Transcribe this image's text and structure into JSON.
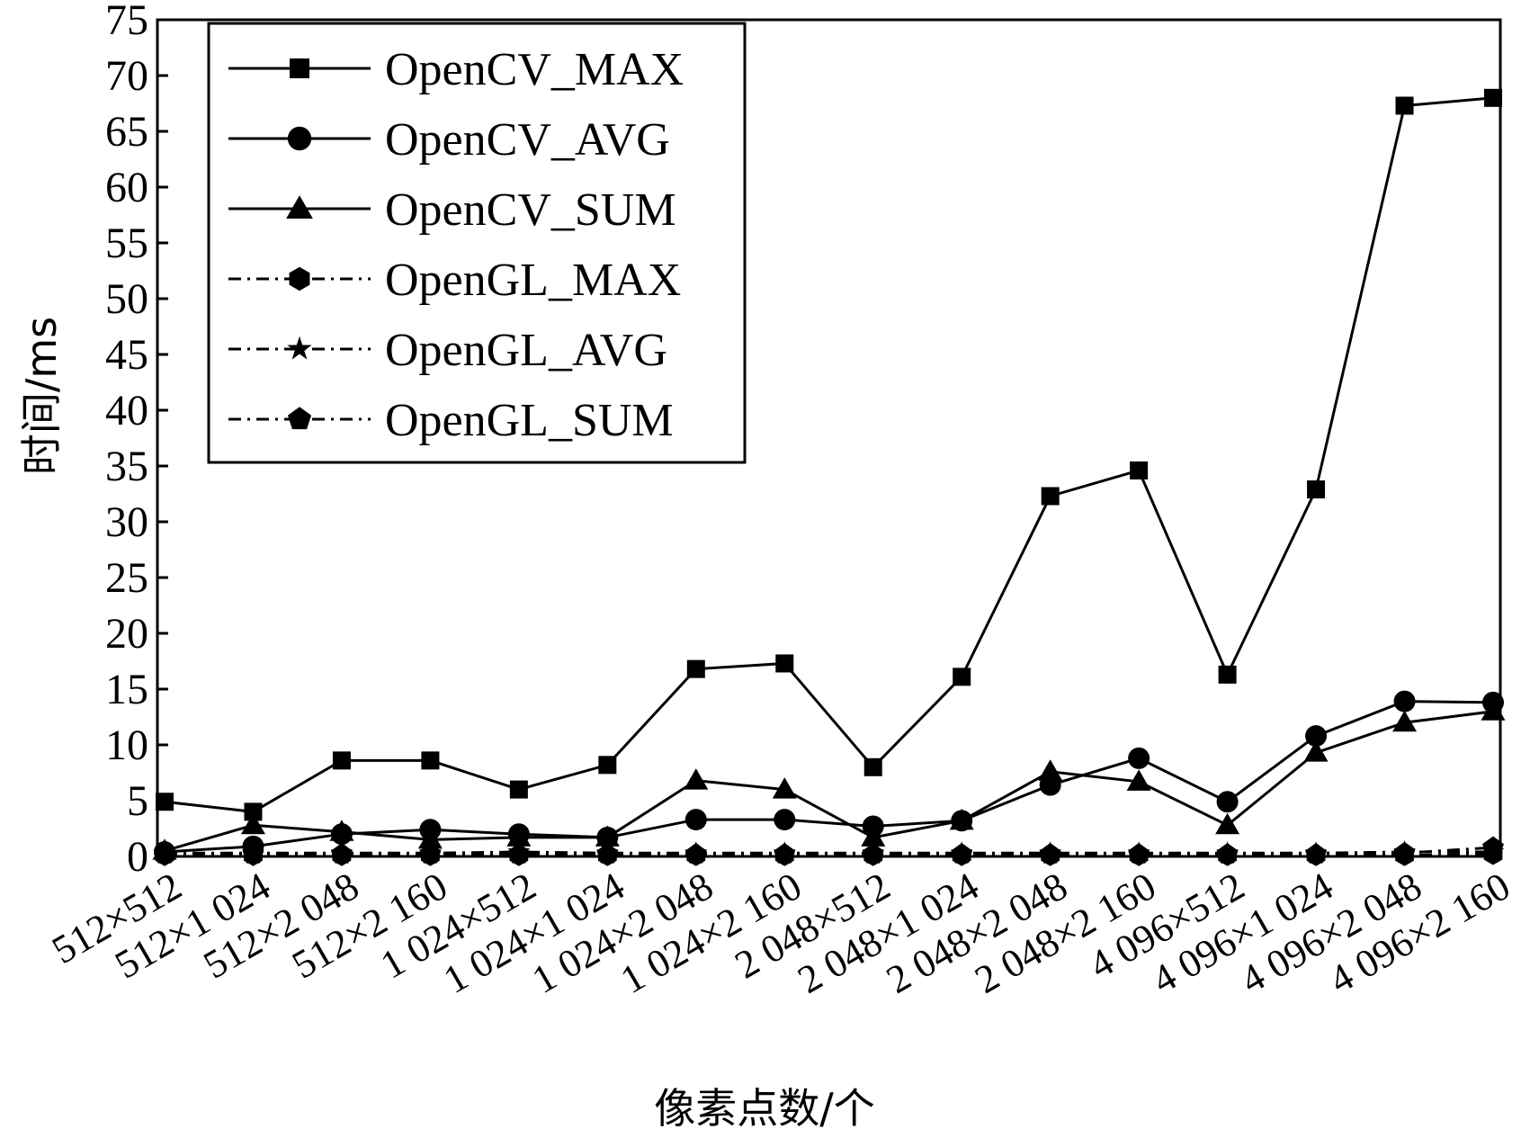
{
  "chart_data": {
    "type": "line",
    "xlabel": "像素点数/个",
    "ylabel": "时间/ms",
    "ylim": [
      0,
      75
    ],
    "yticks": [
      0,
      5,
      10,
      15,
      20,
      25,
      30,
      35,
      40,
      45,
      50,
      55,
      60,
      65,
      70,
      75
    ],
    "grid": false,
    "legend_position": "top-left",
    "categories": [
      "512×512",
      "512×1 024",
      "512×2 048",
      "512×2 160",
      "1 024×512",
      "1 024×1 024",
      "1 024×2 048",
      "1 024×2 160",
      "2 048×512",
      "2 048×1 024",
      "2 048×2 048",
      "2 048×2 160",
      "4 096×512",
      "4 096×1 024",
      "4 096×2 048",
      "4 096×2 160"
    ],
    "series": [
      {
        "name": "OpenCV_MAX",
        "marker": "square",
        "dash": "solid",
        "values": [
          4.9,
          4.0,
          8.6,
          8.6,
          6.0,
          8.2,
          16.8,
          17.3,
          8.0,
          16.1,
          32.3,
          34.6,
          16.3,
          32.9,
          67.3,
          68.0
        ]
      },
      {
        "name": "OpenCV_AVG",
        "marker": "circle",
        "dash": "solid",
        "values": [
          0.4,
          0.9,
          2.0,
          2.4,
          2.0,
          1.7,
          3.3,
          3.3,
          2.7,
          3.2,
          6.4,
          8.8,
          4.9,
          10.8,
          13.9,
          13.8
        ]
      },
      {
        "name": "OpenCV_SUM",
        "marker": "triangle",
        "dash": "solid",
        "values": [
          0.5,
          2.8,
          2.2,
          1.5,
          1.7,
          1.7,
          6.8,
          6.0,
          1.7,
          3.2,
          7.6,
          6.7,
          2.8,
          9.3,
          12.0,
          13.0
        ]
      },
      {
        "name": "OpenGL_MAX",
        "marker": "hexagon",
        "dash": "dashdot",
        "values": [
          0.1,
          0.1,
          0.1,
          0.1,
          0.1,
          0.1,
          0.1,
          0.1,
          0.1,
          0.1,
          0.1,
          0.1,
          0.1,
          0.1,
          0.1,
          0.2
        ]
      },
      {
        "name": "OpenGL_AVG",
        "marker": "star",
        "dash": "dashdot",
        "values": [
          0.3,
          0.3,
          0.3,
          0.3,
          0.4,
          0.3,
          0.3,
          0.3,
          0.3,
          0.3,
          0.3,
          0.3,
          0.3,
          0.3,
          0.4,
          0.4
        ]
      },
      {
        "name": "OpenGL_SUM",
        "marker": "pentagon",
        "dash": "dashdot",
        "values": [
          0.2,
          0.2,
          0.2,
          0.2,
          0.2,
          0.2,
          0.2,
          0.2,
          0.2,
          0.2,
          0.2,
          0.2,
          0.2,
          0.2,
          0.3,
          0.8
        ]
      }
    ]
  }
}
